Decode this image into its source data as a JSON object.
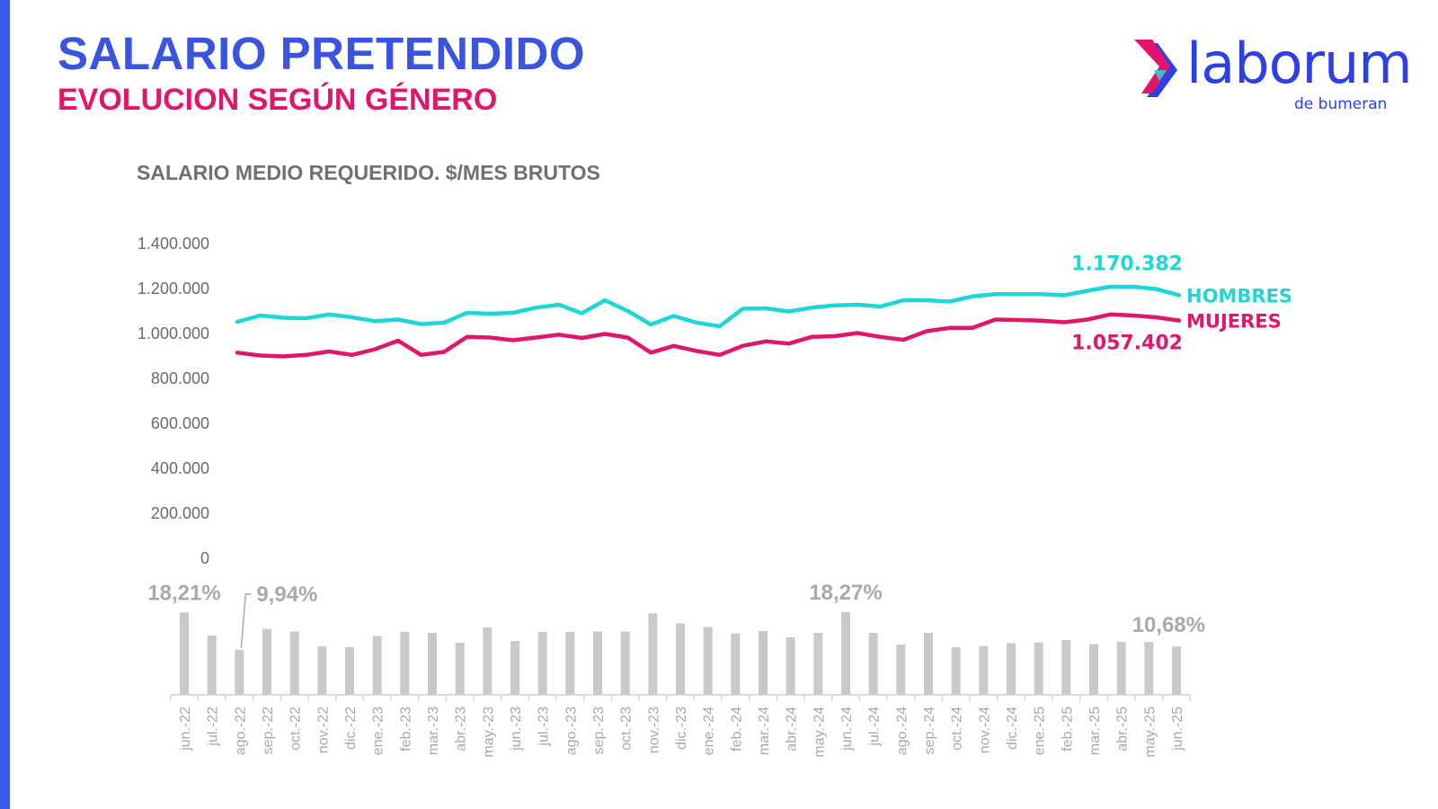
{
  "header": {
    "title": "SALARIO PRETENDIDO",
    "subtitle": "EVOLUCION SEGÚN GÉNERO"
  },
  "logo": {
    "word": "laborum",
    "sub": "de bumeran",
    "brand_color": "#2f3fe6",
    "icon": "chevron-arrow-icon"
  },
  "colors": {
    "accent_bar": "#3a5be8",
    "title": "#3a54e0",
    "subtitle": "#e0166e",
    "hombres": "#1ed6d6",
    "mujeres": "#e0166e",
    "gap_bars": "#c9c9c9"
  },
  "chart_data": [
    {
      "type": "line",
      "title": "SALARIO MEDIO REQUERIDO. $/MES BRUTOS",
      "ylim": [
        0,
        1400000
      ],
      "yticks": [
        "1.400.000",
        "1.200.000",
        "1.000.000",
        "800.000",
        "600.000",
        "400.000",
        "200.000",
        "0"
      ],
      "ytick_values": [
        1400000,
        1200000,
        1000000,
        800000,
        600000,
        400000,
        200000,
        0
      ],
      "grid": false,
      "series": [
        {
          "name": "HOMBRES",
          "color": "#1ed6d6",
          "end_label": "1.170.382",
          "values": [
            1052000,
            1080000,
            1070000,
            1068000,
            1085000,
            1072000,
            1055000,
            1062000,
            1042000,
            1048000,
            1092000,
            1088000,
            1092000,
            1115000,
            1128000,
            1090000,
            1148000,
            1100000,
            1040000,
            1078000,
            1048000,
            1032000,
            1110000,
            1112000,
            1098000,
            1115000,
            1125000,
            1128000,
            1120000,
            1148000,
            1148000,
            1142000,
            1165000,
            1175000,
            1175000,
            1175000,
            1170000,
            1190000,
            1208000,
            1208000,
            1198000,
            1170382
          ]
        },
        {
          "name": "MUJERES",
          "color": "#e0166e",
          "end_label": "1.057.402",
          "values": [
            915000,
            902000,
            898000,
            905000,
            920000,
            905000,
            930000,
            968000,
            905000,
            918000,
            985000,
            982000,
            970000,
            982000,
            995000,
            980000,
            998000,
            982000,
            915000,
            945000,
            922000,
            905000,
            945000,
            965000,
            955000,
            985000,
            988000,
            1002000,
            985000,
            972000,
            1010000,
            1025000,
            1025000,
            1062000,
            1060000,
            1057000,
            1050000,
            1062000,
            1085000,
            1080000,
            1072000,
            1057402
          ]
        }
      ]
    },
    {
      "type": "bar",
      "categories": [
        "jun.-22",
        "jul.-22",
        "ago.-22",
        "sep.-22",
        "oct.-22",
        "nov.-22",
        "dic.-22",
        "ene.-23",
        "feb.-23",
        "mar.-23",
        "abr.-23",
        "may.-23",
        "jun.-23",
        "jul.-23",
        "ago.-23",
        "sep.-23",
        "oct.-23",
        "nov.-23",
        "dic.-23",
        "ene.-24",
        "feb.-24",
        "mar.-24",
        "abr.-24",
        "may.-24",
        "jun.-24",
        "jul.-24",
        "ago.-24",
        "sep.-24",
        "oct.-24",
        "nov.-24",
        "dic.-24",
        "ene.-25",
        "feb.-25",
        "mar.-25",
        "abr.-25",
        "may.-25",
        "jun.-25"
      ],
      "values": [
        18.21,
        13.1,
        9.94,
        14.6,
        14.0,
        10.7,
        10.5,
        13.0,
        13.9,
        13.7,
        11.5,
        14.9,
        11.9,
        13.9,
        13.9,
        14.0,
        14.0,
        18.0,
        15.8,
        15.0,
        13.6,
        14.1,
        12.7,
        13.7,
        18.27,
        13.7,
        11.1,
        13.7,
        10.5,
        10.8,
        11.4,
        11.6,
        12.1,
        11.2,
        11.7,
        11.7,
        10.68
      ],
      "labels": [
        {
          "index": 0,
          "text": "18,21%"
        },
        {
          "index": 2,
          "text": "9,94%"
        },
        {
          "index": 24,
          "text": "18,27%"
        },
        {
          "index": 36,
          "text": "10,68%"
        }
      ],
      "color": "#c9c9c9"
    }
  ]
}
